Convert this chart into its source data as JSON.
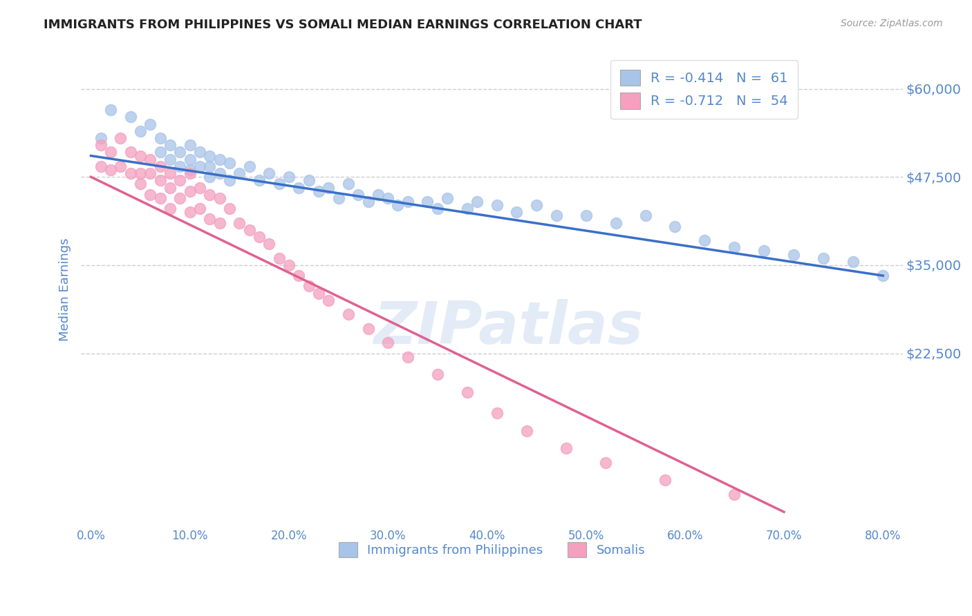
{
  "title": "IMMIGRANTS FROM PHILIPPINES VS SOMALI MEDIAN EARNINGS CORRELATION CHART",
  "source": "Source: ZipAtlas.com",
  "ylabel": "Median Earnings",
  "xlim": [
    -0.01,
    0.82
  ],
  "ylim": [
    -2000,
    65000
  ],
  "yticks": [
    22500,
    35000,
    47500,
    60000
  ],
  "ytick_labels": [
    "$22,500",
    "$35,000",
    "$47,500",
    "$60,000"
  ],
  "xticks": [
    0.0,
    0.1,
    0.2,
    0.3,
    0.4,
    0.5,
    0.6,
    0.7,
    0.8
  ],
  "xtick_labels": [
    "0.0%",
    "10.0%",
    "20.0%",
    "30.0%",
    "40.0%",
    "50.0%",
    "60.0%",
    "70.0%",
    "80.0%"
  ],
  "blue_color": "#a8c4e8",
  "pink_color": "#f4a0be",
  "blue_line_color": "#3a6fc8",
  "pink_line_color": "#e06090",
  "label_color": "#5588cc",
  "grid_color": "#c8c8c8",
  "watermark": "ZIPatlas",
  "legend_label_blue": "Immigrants from Philippines",
  "legend_label_pink": "Somalis",
  "legend_text_blue": "R = -0.414   N =  61",
  "legend_text_pink": "R = -0.712   N =  54",
  "blue_scatter_x": [
    0.01,
    0.02,
    0.04,
    0.05,
    0.06,
    0.07,
    0.07,
    0.08,
    0.08,
    0.09,
    0.09,
    0.1,
    0.1,
    0.1,
    0.11,
    0.11,
    0.12,
    0.12,
    0.12,
    0.13,
    0.13,
    0.14,
    0.14,
    0.15,
    0.16,
    0.17,
    0.18,
    0.19,
    0.2,
    0.21,
    0.22,
    0.23,
    0.24,
    0.25,
    0.26,
    0.27,
    0.28,
    0.29,
    0.3,
    0.31,
    0.32,
    0.34,
    0.35,
    0.36,
    0.38,
    0.39,
    0.41,
    0.43,
    0.45,
    0.47,
    0.5,
    0.53,
    0.56,
    0.59,
    0.62,
    0.65,
    0.68,
    0.71,
    0.74,
    0.77,
    0.8
  ],
  "blue_scatter_y": [
    53000,
    57000,
    56000,
    54000,
    55000,
    53000,
    51000,
    52000,
    50000,
    51000,
    49000,
    52000,
    50000,
    48500,
    51000,
    49000,
    50500,
    49000,
    47500,
    50000,
    48000,
    49500,
    47000,
    48000,
    49000,
    47000,
    48000,
    46500,
    47500,
    46000,
    47000,
    45500,
    46000,
    44500,
    46500,
    45000,
    44000,
    45000,
    44500,
    43500,
    44000,
    44000,
    43000,
    44500,
    43000,
    44000,
    43500,
    42500,
    43500,
    42000,
    42000,
    41000,
    42000,
    40500,
    38500,
    37500,
    37000,
    36500,
    36000,
    35500,
    33500
  ],
  "pink_scatter_x": [
    0.01,
    0.01,
    0.02,
    0.02,
    0.03,
    0.03,
    0.04,
    0.04,
    0.05,
    0.05,
    0.05,
    0.06,
    0.06,
    0.06,
    0.07,
    0.07,
    0.07,
    0.08,
    0.08,
    0.08,
    0.09,
    0.09,
    0.1,
    0.1,
    0.1,
    0.11,
    0.11,
    0.12,
    0.12,
    0.13,
    0.13,
    0.14,
    0.15,
    0.16,
    0.17,
    0.18,
    0.19,
    0.2,
    0.21,
    0.22,
    0.23,
    0.24,
    0.26,
    0.28,
    0.3,
    0.32,
    0.35,
    0.38,
    0.41,
    0.44,
    0.48,
    0.52,
    0.58,
    0.65
  ],
  "pink_scatter_y": [
    52000,
    49000,
    51000,
    48500,
    53000,
    49000,
    51000,
    48000,
    50500,
    48000,
    46500,
    50000,
    48000,
    45000,
    49000,
    47000,
    44500,
    48000,
    46000,
    43000,
    47000,
    44500,
    48000,
    45500,
    42500,
    46000,
    43000,
    45000,
    41500,
    44500,
    41000,
    43000,
    41000,
    40000,
    39000,
    38000,
    36000,
    35000,
    33500,
    32000,
    31000,
    30000,
    28000,
    26000,
    24000,
    22000,
    19500,
    17000,
    14000,
    11500,
    9000,
    7000,
    4500,
    2500
  ],
  "blue_line_x": [
    0.0,
    0.8
  ],
  "blue_line_y": [
    50500,
    33500
  ],
  "pink_line_x": [
    0.0,
    0.7
  ],
  "pink_line_y": [
    47500,
    0
  ],
  "background_color": "#ffffff",
  "title_fontsize": 13,
  "tick_label_color": "#5588cc"
}
